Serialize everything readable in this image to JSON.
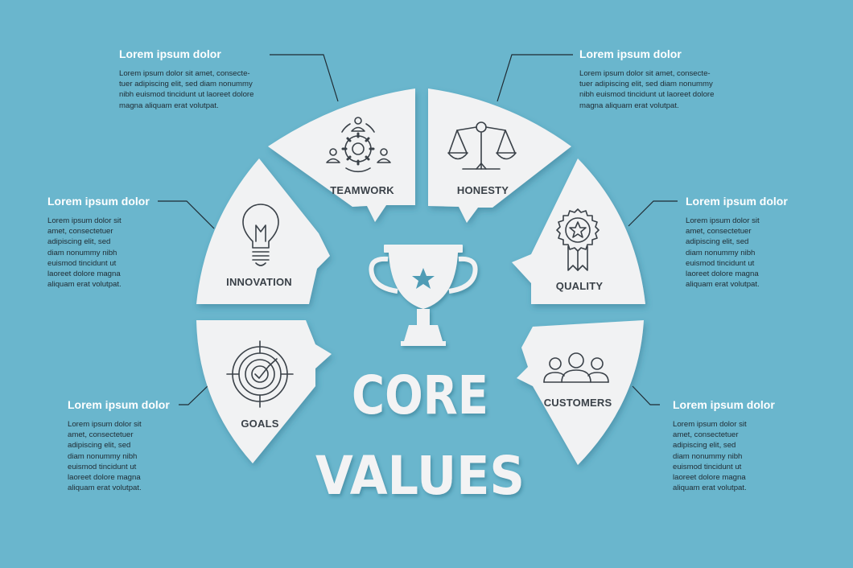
{
  "title": {
    "line1": "CORE",
    "line2": "VALUES"
  },
  "segments": [
    {
      "key": "teamwork",
      "label": "TEAMWORK",
      "icon": "team-gear-icon"
    },
    {
      "key": "honesty",
      "label": "HONESTY",
      "icon": "scales-icon"
    },
    {
      "key": "quality",
      "label": "QUALITY",
      "icon": "award-ribbon-icon"
    },
    {
      "key": "customers",
      "label": "CUSTOMERS",
      "icon": "people-group-icon"
    },
    {
      "key": "goals",
      "label": "GOALS",
      "icon": "target-icon"
    },
    {
      "key": "innovation",
      "label": "INNOVATION",
      "icon": "lightbulb-icon"
    }
  ],
  "callouts": {
    "teamwork": {
      "heading": "Lorem ipsum dolor",
      "body": "Lorem ipsum dolor sit amet, consecte-\ntuer adipiscing elit, sed diam nonummy\nnibh euismod tincidunt ut laoreet dolore\nmagna aliquam erat volutpat."
    },
    "honesty": {
      "heading": "Lorem ipsum dolor",
      "body": "Lorem ipsum dolor sit amet, consecte-\ntuer adipiscing elit, sed diam nonummy\nnibh euismod tincidunt ut laoreet dolore\nmagna aliquam erat volutpat."
    },
    "innovation": {
      "heading": "Lorem ipsum dolor",
      "body": "Lorem ipsum dolor sit\namet, consectetuer\nadipiscing elit, sed\ndiam nonummy nibh\neuismod tincidunt ut\nlaoreet dolore magna\naliquam erat volutpat."
    },
    "quality": {
      "heading": "Lorem ipsum dolor",
      "body": "Lorem ipsum dolor sit\namet, consectetuer\nadipiscing elit, sed\ndiam nonummy nibh\neuismod tincidunt ut\nlaoreet dolore magna\naliquam erat volutpat."
    },
    "goals": {
      "heading": "Lorem ipsum dolor",
      "body": "Lorem ipsum dolor sit\namet, consectetuer\nadipiscing elit, sed\ndiam nonummy nibh\neuismod tincidunt ut\nlaoreet dolore magna\naliquam erat volutpat."
    },
    "customers": {
      "heading": "Lorem ipsum dolor",
      "body": "Lorem ipsum dolor sit\namet, consectetuer\nadipiscing elit, sed\ndiam nonummy nibh\neuismod tincidunt ut\nlaoreet dolore magna\naliquam erat volutpat."
    }
  },
  "colors": {
    "background": "#6ab6cd",
    "panel": "#f1f2f3",
    "line": "#1f2b33",
    "star": "#4f9cb5",
    "label": "#3a4148"
  },
  "center_icon": "trophy-icon"
}
